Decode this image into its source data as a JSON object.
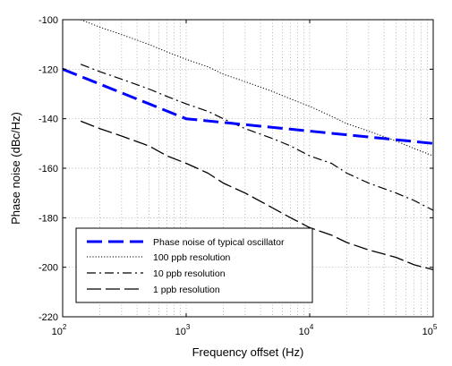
{
  "chart_data": {
    "type": "line",
    "xlabel": "Frequency offset (Hz)",
    "ylabel": "Phase noise (dBc/Hz)",
    "xscale": "log",
    "xlim": [
      100,
      100000
    ],
    "ylim": [
      -220,
      -100
    ],
    "grid": true,
    "legend_position": "bottom-left",
    "x_ticks": [
      {
        "base": "10",
        "exp": "2"
      },
      {
        "base": "10",
        "exp": "3"
      },
      {
        "base": "10",
        "exp": "4"
      },
      {
        "base": "10",
        "exp": "5"
      }
    ],
    "y_ticks": [
      "-100",
      "-120",
      "-140",
      "-160",
      "-180",
      "-200",
      "-220"
    ],
    "y_tick_values": [
      -100,
      -120,
      -140,
      -160,
      -180,
      -200,
      -220
    ],
    "series": [
      {
        "name": "Phase noise of typical oscillator",
        "color": "#0000ff",
        "style": "dash-thick",
        "x": [
          100,
          1000,
          10000,
          100000
        ],
        "y": [
          -120,
          -140,
          -145,
          -150
        ]
      },
      {
        "name": "100 ppb resolution",
        "color": "#000000",
        "style": "dotted",
        "x": [
          140,
          200,
          300,
          500,
          700,
          1000,
          1500,
          2000,
          3000,
          5000,
          7000,
          10000,
          15000,
          20000,
          30000,
          50000,
          70000,
          100000
        ],
        "y": [
          -100,
          -103,
          -106,
          -110,
          -113,
          -116,
          -119,
          -122,
          -125,
          -129,
          -132,
          -135,
          -139,
          -142,
          -145,
          -149,
          -152,
          -155
        ]
      },
      {
        "name": "10 ppb resolution",
        "color": "#000000",
        "style": "dash-dot",
        "x": [
          140,
          200,
          300,
          500,
          700,
          1000,
          1500,
          2000,
          3000,
          5000,
          7000,
          10000,
          15000,
          20000,
          30000,
          50000,
          70000,
          100000
        ],
        "y": [
          -118,
          -121,
          -124,
          -128,
          -131,
          -134,
          -137,
          -140,
          -144,
          -148,
          -151,
          -155,
          -158,
          -162,
          -166,
          -170,
          -173,
          -177
        ]
      },
      {
        "name": "1 ppb resolution",
        "color": "#000000",
        "style": "long-dash",
        "x": [
          140,
          200,
          300,
          500,
          700,
          1000,
          1500,
          2000,
          3000,
          5000,
          7000,
          10000,
          15000,
          20000,
          30000,
          50000,
          70000,
          100000
        ],
        "y": [
          -141,
          -144,
          -147,
          -151,
          -155,
          -158,
          -162,
          -166,
          -170,
          -176,
          -180,
          -184,
          -187,
          -190,
          -193,
          -196,
          -199,
          -201
        ]
      }
    ]
  }
}
